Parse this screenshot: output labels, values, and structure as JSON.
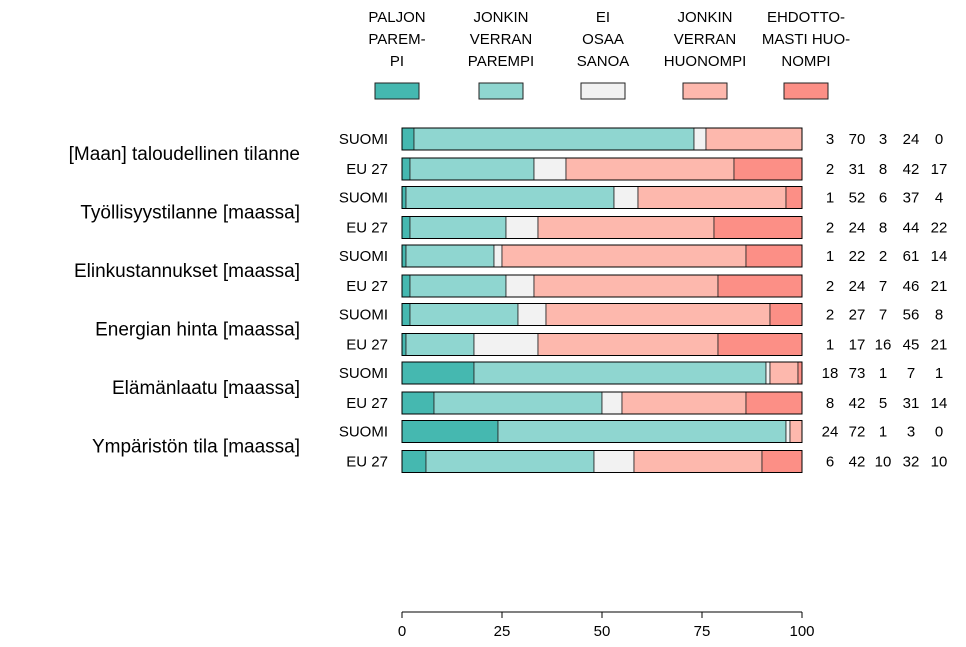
{
  "chart_data": {
    "type": "bar",
    "orientation": "horizontal",
    "stacked": true,
    "xlim": [
      0,
      100
    ],
    "xticks": [
      0,
      25,
      50,
      75,
      100
    ],
    "legend": {
      "position": "top",
      "entries": [
        {
          "lines": [
            "PALJON",
            "PAREM-",
            "PI"
          ],
          "color": "#45b8b0"
        },
        {
          "lines": [
            "JONKIN",
            "VERRAN",
            "PAREMPI"
          ],
          "color": "#8fd6d0"
        },
        {
          "lines": [
            "EI",
            "OSAA",
            "SANOA"
          ],
          "color": "#f2f2f2"
        },
        {
          "lines": [
            "JONKIN",
            "VERRAN",
            "HUONOMPI"
          ],
          "color": "#fdb8ad"
        },
        {
          "lines": [
            "EHDOTTO-",
            "MASTI HUO-",
            "NOMPI"
          ],
          "color": "#fc8f86"
        }
      ]
    },
    "row_labels": [
      "SUOMI",
      "EU 27"
    ],
    "groups": [
      {
        "label": "[Maan] taloudellinen tilanne",
        "rows": [
          [
            3,
            70,
            3,
            24,
            0
          ],
          [
            2,
            31,
            8,
            42,
            17
          ]
        ]
      },
      {
        "label": "Työllisyystilanne [maassa]",
        "rows": [
          [
            1,
            52,
            6,
            37,
            4
          ],
          [
            2,
            24,
            8,
            44,
            22
          ]
        ]
      },
      {
        "label": "Elinkustannukset [maassa]",
        "rows": [
          [
            1,
            22,
            2,
            61,
            14
          ],
          [
            2,
            24,
            7,
            46,
            21
          ]
        ]
      },
      {
        "label": "Energian hinta [maassa]",
        "rows": [
          [
            2,
            27,
            7,
            56,
            8
          ],
          [
            1,
            17,
            16,
            45,
            21
          ]
        ]
      },
      {
        "label": "Elämänlaatu [maassa]",
        "rows": [
          [
            18,
            73,
            1,
            7,
            1
          ],
          [
            8,
            42,
            5,
            31,
            14
          ]
        ]
      },
      {
        "label": "Ympäristön tila [maassa]",
        "rows": [
          [
            24,
            72,
            1,
            3,
            0
          ],
          [
            6,
            42,
            10,
            32,
            10
          ]
        ]
      }
    ]
  }
}
